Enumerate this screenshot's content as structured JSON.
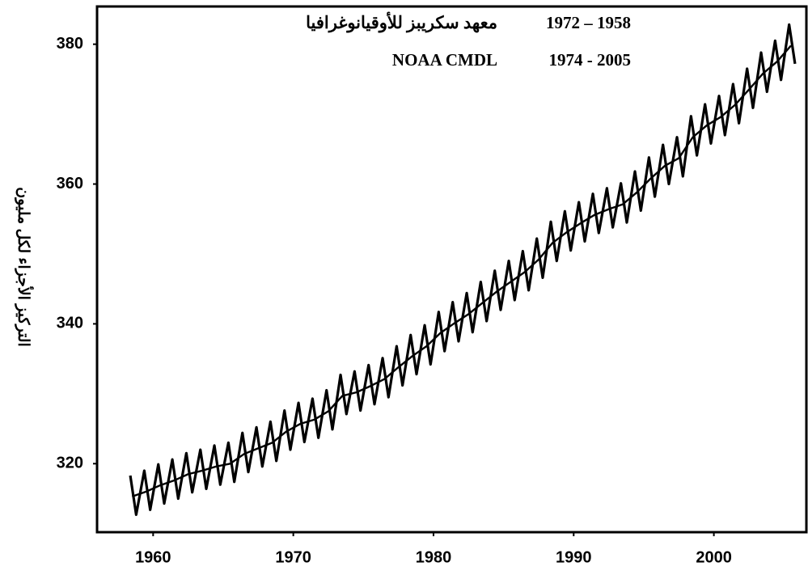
{
  "chart_data": {
    "type": "line",
    "ylabel": "التركيز الأجزاء لكل مليون",
    "annotations": [
      {
        "source": "معهد سكريبز للأوقيانوغرافيا",
        "years": "1972 – 1958"
      },
      {
        "source": "NOAA CMDL",
        "years": "1974 - 2005"
      }
    ],
    "xlim": [
      1956,
      2006.6
    ],
    "xticks": [
      1960,
      1970,
      1980,
      1990,
      2000
    ],
    "ylim": [
      310.2,
      385.4
    ],
    "yticks": [
      320,
      340,
      360,
      380
    ],
    "series": [
      {
        "color": "#000000",
        "width": 3.2,
        "x": [
          1958.37,
          1958.79,
          1959.37,
          1959.79,
          1960.37,
          1960.79,
          1961.37,
          1961.79,
          1962.37,
          1962.79,
          1963.37,
          1963.79,
          1964.37,
          1964.79,
          1965.37,
          1965.79,
          1966.37,
          1966.79,
          1967.37,
          1967.79,
          1968.37,
          1968.79,
          1969.37,
          1969.79,
          1970.37,
          1970.79,
          1971.37,
          1971.79,
          1972.37,
          1972.79,
          1973.37,
          1973.79,
          1974.37,
          1974.79,
          1975.37,
          1975.79,
          1976.37,
          1976.79,
          1977.37,
          1977.79,
          1978.37,
          1978.79,
          1979.37,
          1979.79,
          1980.37,
          1980.79,
          1981.37,
          1981.79,
          1982.37,
          1982.79,
          1983.37,
          1983.79,
          1984.37,
          1984.79,
          1985.37,
          1985.79,
          1986.37,
          1986.79,
          1987.37,
          1987.79,
          1988.37,
          1988.79,
          1989.37,
          1989.79,
          1990.37,
          1990.79,
          1991.37,
          1991.79,
          1992.37,
          1992.79,
          1993.37,
          1993.79,
          1994.37,
          1994.79,
          1995.37,
          1995.79,
          1996.37,
          1996.79,
          1997.37,
          1997.79,
          1998.37,
          1998.79,
          1999.37,
          1999.79,
          2000.37,
          2000.79,
          2001.37,
          2001.79,
          2002.37,
          2002.79,
          2003.37,
          2003.79,
          2004.37,
          2004.79,
          2005.37,
          2005.79
        ],
        "values": [
          318.3,
          312.7,
          319.0,
          313.4,
          319.9,
          314.3,
          320.6,
          315.0,
          321.5,
          315.9,
          322.0,
          316.4,
          322.6,
          317.0,
          323.0,
          317.4,
          324.4,
          318.8,
          325.2,
          319.6,
          326.0,
          320.4,
          327.6,
          322.0,
          328.7,
          323.1,
          329.3,
          323.7,
          330.5,
          324.9,
          332.7,
          327.1,
          333.2,
          327.6,
          334.1,
          328.5,
          335.1,
          329.5,
          336.8,
          331.2,
          338.4,
          332.8,
          339.8,
          334.2,
          341.7,
          336.1,
          343.1,
          337.5,
          344.4,
          338.8,
          346.0,
          340.4,
          347.6,
          342.0,
          349.0,
          343.4,
          350.4,
          344.8,
          352.2,
          346.6,
          354.6,
          349.0,
          356.1,
          350.5,
          357.4,
          351.8,
          358.6,
          353.0,
          359.4,
          353.8,
          360.1,
          354.5,
          361.8,
          356.2,
          363.8,
          358.2,
          365.6,
          360.0,
          366.7,
          361.1,
          369.7,
          364.1,
          371.4,
          365.8,
          372.6,
          367.0,
          374.3,
          368.7,
          376.5,
          370.9,
          378.8,
          373.2,
          380.5,
          374.9,
          382.8,
          377.2
        ]
      },
      {
        "color": "#000000",
        "width": 2.4,
        "x": [
          1958.5,
          1959.5,
          1960.5,
          1961.5,
          1962.5,
          1963.5,
          1964.5,
          1965.5,
          1966.5,
          1967.5,
          1968.5,
          1969.5,
          1970.5,
          1971.5,
          1972.5,
          1973.5,
          1974.5,
          1975.5,
          1976.5,
          1977.5,
          1978.5,
          1979.5,
          1980.5,
          1981.5,
          1982.5,
          1983.5,
          1984.5,
          1985.5,
          1986.5,
          1987.5,
          1988.5,
          1989.5,
          1990.5,
          1991.5,
          1992.5,
          1993.5,
          1994.5,
          1995.5,
          1996.5,
          1997.5,
          1998.5,
          1999.5,
          2000.5,
          2001.5,
          2002.5,
          2003.5,
          2004.5,
          2005.5
        ],
        "values": [
          315.3,
          316.0,
          316.9,
          317.6,
          318.5,
          319.0,
          319.6,
          320.0,
          321.4,
          322.2,
          323.0,
          324.6,
          325.7,
          326.3,
          327.5,
          329.7,
          330.2,
          331.1,
          332.1,
          333.8,
          335.4,
          336.8,
          338.7,
          340.1,
          341.4,
          343.0,
          344.6,
          346.0,
          347.4,
          349.2,
          351.6,
          353.1,
          354.4,
          355.6,
          356.4,
          357.1,
          358.8,
          360.8,
          362.6,
          363.7,
          366.7,
          368.4,
          369.6,
          371.3,
          373.5,
          375.8,
          377.5,
          379.8
        ]
      }
    ]
  }
}
